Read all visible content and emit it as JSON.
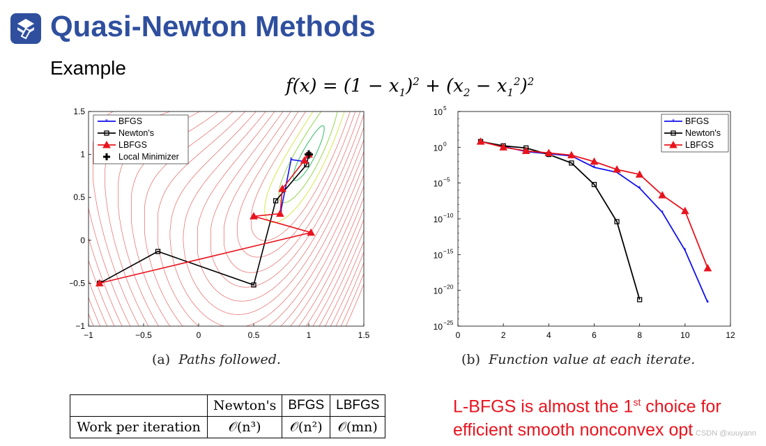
{
  "title": "Quasi-Newton Methods",
  "subtitle": "Example",
  "formula": {
    "lhs": "f(x) = (1 − x",
    "rest": "+ (x"
  },
  "colors": {
    "title": "#2f4f9e",
    "bfgs": "#1010ee",
    "newton": "#000000",
    "lbfgs": "#e8141e",
    "note": "#e8141e"
  },
  "caption_a": {
    "label": "(a)",
    "text": "Paths followed."
  },
  "caption_b": {
    "label": "(b)",
    "text": "Function value at each iterate."
  },
  "table": {
    "headers": [
      "Newton's",
      "BFGS",
      "LBFGS"
    ],
    "row_label": "Work per iteration",
    "cells": [
      "𝒪(n³)",
      "𝒪(n²)",
      "𝒪(mn)"
    ]
  },
  "note": {
    "part1": "L-BFGS is almost the 1",
    "sup": "st",
    "part2": " choice for efficient smooth nonconvex opt"
  },
  "watermark": "CSDN @xuuyann",
  "chart_data": [
    {
      "type": "line",
      "title": "Paths followed.",
      "xlim": [
        -1,
        1.5
      ],
      "ylim": [
        -1,
        1.5
      ],
      "xticks": [
        "−1",
        "−0.5",
        "0",
        "0.5",
        "1",
        "1.5"
      ],
      "yticks": [
        "−1",
        "−0.5",
        "0",
        "0.5",
        "1",
        "1.5"
      ],
      "legend": [
        "BFGS",
        "Newton's",
        "LBFGS",
        "Local Minimizer"
      ],
      "series": [
        {
          "name": "BFGS",
          "x": [
            0.75,
            0.74,
            0.84,
            0.95,
            0.98,
            1.0
          ],
          "y": [
            0.33,
            0.3,
            0.94,
            0.92,
            0.96,
            1.0
          ]
        },
        {
          "name": "Newton's",
          "x": [
            -0.9,
            -0.37,
            0.5,
            0.7,
            0.98,
            1.0
          ],
          "y": [
            -0.5,
            -0.13,
            -0.52,
            0.46,
            0.88,
            1.0
          ]
        },
        {
          "name": "LBFGS",
          "x": [
            -0.9,
            1.02,
            0.5,
            0.74,
            0.76,
            0.96,
            1.0
          ],
          "y": [
            -0.5,
            0.09,
            0.28,
            0.31,
            0.6,
            0.93,
            1.0
          ]
        }
      ],
      "minimizer": {
        "x": 1.0,
        "y": 1.0
      }
    },
    {
      "type": "line",
      "title": "Function value at each iterate.",
      "xlim": [
        0,
        12
      ],
      "ylog_exp_range": [
        -25,
        5
      ],
      "xticks": [
        "0",
        "2",
        "4",
        "6",
        "8",
        "10",
        "12"
      ],
      "yticks": [
        {
          "base": "10",
          "exp": "5"
        },
        {
          "base": "10",
          "exp": "0"
        },
        {
          "base": "10",
          "exp": "−5"
        },
        {
          "base": "10",
          "exp": "−10"
        },
        {
          "base": "10",
          "exp": "−15"
        },
        {
          "base": "10",
          "exp": "−20"
        },
        {
          "base": "10",
          "exp": "−25"
        }
      ],
      "legend": [
        "BFGS",
        "Newton's",
        "LBFGS"
      ],
      "series": [
        {
          "name": "BFGS",
          "x": [
            1,
            2,
            3,
            4,
            5,
            6,
            7,
            8,
            9,
            10,
            11
          ],
          "log10_y": [
            0.8,
            0.1,
            -0.6,
            -0.9,
            -1.2,
            -2.8,
            -3.5,
            -5.7,
            -9.1,
            -14.4,
            -21.7
          ]
        },
        {
          "name": "Newton's",
          "x": [
            1,
            2,
            3,
            4,
            5,
            6,
            7,
            8
          ],
          "log10_y": [
            0.8,
            0.2,
            -0.1,
            -1.0,
            -2.2,
            -5.2,
            -10.4,
            -21.3
          ]
        },
        {
          "name": "LBFGS",
          "x": [
            1,
            2,
            3,
            4,
            5,
            6,
            7,
            8,
            9,
            10,
            11
          ],
          "log10_y": [
            0.8,
            0.0,
            -0.5,
            -0.8,
            -1.1,
            -2.0,
            -3.1,
            -3.8,
            -6.7,
            -8.9,
            -16.9
          ]
        }
      ]
    }
  ]
}
